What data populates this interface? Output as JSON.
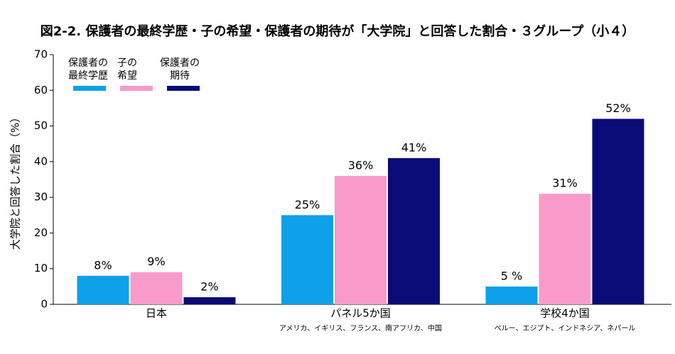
{
  "chart_data": {
    "type": "bar",
    "title": "図2-2. 保護者の最終学歴・子の希望・保護者の期待が「大学院」と回答した割合・３グループ（小４）",
    "y_label": "大学院と回答した割合（%）",
    "categories": [
      "日本",
      "パネル5か国",
      "学校4か国"
    ],
    "category_notes": [
      null,
      "アメリカ、イギリス、フランス、南アフリカ、中国",
      "ペルー、エジプト、インドネシア、ネパール"
    ],
    "series": [
      {
        "name": "保護者の\n最終学歴",
        "color": "#0fa0ea",
        "values": [
          8,
          25,
          5
        ],
        "value_labels": [
          "8%",
          "25%",
          "5 %"
        ]
      },
      {
        "name": "子の\n希望",
        "color": "#f89bca",
        "values": [
          9,
          36,
          31
        ],
        "value_labels": [
          "9%",
          "36%",
          "31%"
        ]
      },
      {
        "name": "保護者の\n期待",
        "color": "#0b0b78",
        "values": [
          2,
          41,
          52
        ],
        "value_labels": [
          "2%",
          "41%",
          "52%"
        ]
      }
    ],
    "ylim": [
      0,
      70
    ],
    "yticks": [
      0,
      10,
      20,
      30,
      40,
      50,
      60,
      70
    ],
    "legend": "top-left"
  }
}
